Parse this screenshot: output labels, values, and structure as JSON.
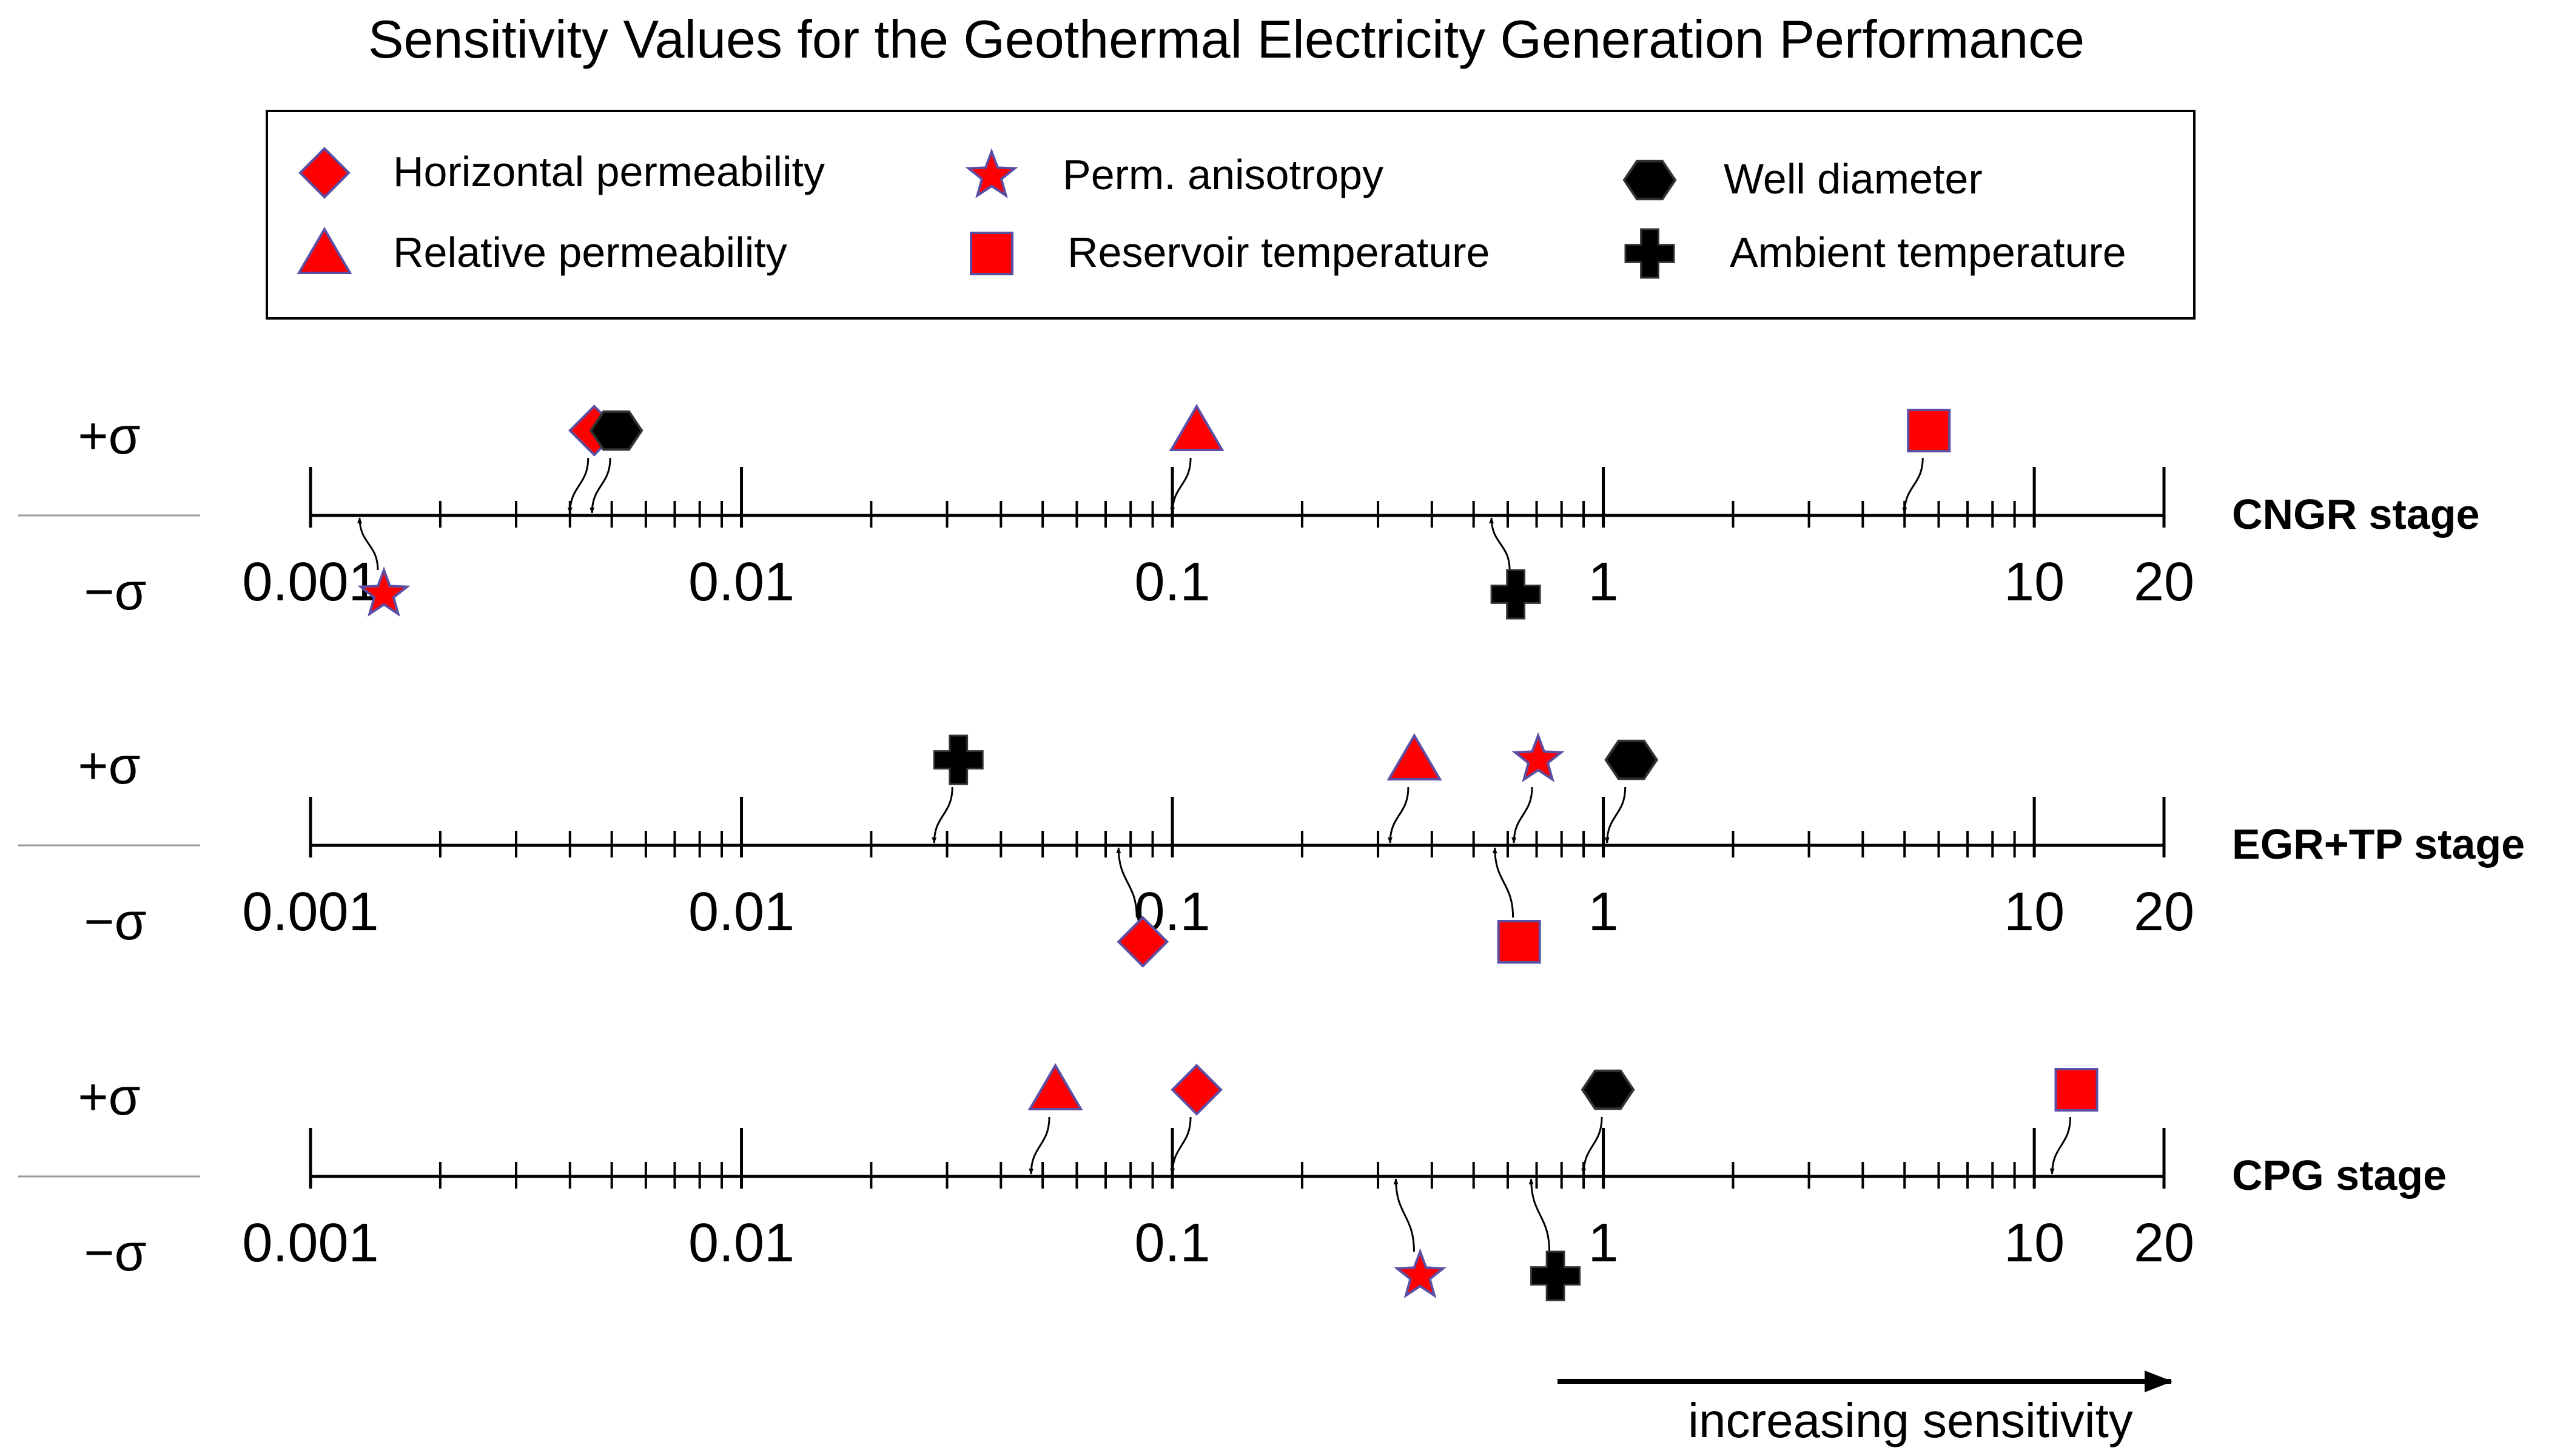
{
  "chart_data": {
    "type": "scatter",
    "title": "Sensitivity Values for the Geothermal Electricity Generation Performance",
    "scale": "log",
    "xlim": [
      0.001,
      20
    ],
    "tick_labels": [
      "0.001",
      "0.01",
      "0.1",
      "1",
      "10",
      "20"
    ],
    "tick_values": [
      0.001,
      0.01,
      0.1,
      1,
      10,
      20
    ],
    "plus_sigma_label": "+σ",
    "minus_sigma_label": "−σ",
    "arrow_label": "increasing sensitivity",
    "legend": [
      {
        "key": "hp",
        "label": "Horizontal permeability",
        "marker": "diamond",
        "color": "#ff0000"
      },
      {
        "key": "rp",
        "label": "Relative permeability",
        "marker": "triangle",
        "color": "#ff0000"
      },
      {
        "key": "pa",
        "label": "Perm. anisotropy",
        "marker": "star",
        "color": "#ff0000"
      },
      {
        "key": "rt",
        "label": "Reservoir temperature",
        "marker": "square",
        "color": "#ff0000"
      },
      {
        "key": "wd",
        "label": "Well diameter",
        "marker": "hexagon",
        "color": "#000000"
      },
      {
        "key": "at",
        "label": "Ambient temperature",
        "marker": "cross",
        "color": "#000000"
      }
    ],
    "stages": [
      {
        "name": "CNGR stage",
        "points": [
          {
            "key": "hp",
            "value": 0.004,
            "side": "+σ"
          },
          {
            "key": "wd",
            "value": 0.0045,
            "side": "+σ"
          },
          {
            "key": "rp",
            "value": 0.1,
            "side": "+σ"
          },
          {
            "key": "rt",
            "value": 5,
            "side": "+σ"
          },
          {
            "key": "pa",
            "value": 0.0013,
            "side": "−σ"
          },
          {
            "key": "at",
            "value": 0.55,
            "side": "−σ"
          }
        ]
      },
      {
        "name": "EGR+TP stage",
        "points": [
          {
            "key": "at",
            "value": 0.028,
            "side": "+σ"
          },
          {
            "key": "rp",
            "value": 0.32,
            "side": "+σ"
          },
          {
            "key": "pa",
            "value": 0.62,
            "side": "+σ"
          },
          {
            "key": "wd",
            "value": 1.02,
            "side": "+σ"
          },
          {
            "key": "hp",
            "value": 0.075,
            "side": "−σ"
          },
          {
            "key": "rt",
            "value": 0.56,
            "side": "−σ"
          }
        ]
      },
      {
        "name": "CPG stage",
        "points": [
          {
            "key": "rp",
            "value": 0.047,
            "side": "+σ"
          },
          {
            "key": "hp",
            "value": 0.1,
            "side": "+σ"
          },
          {
            "key": "wd",
            "value": 0.9,
            "side": "+σ"
          },
          {
            "key": "rt",
            "value": 11,
            "side": "+σ"
          },
          {
            "key": "pa",
            "value": 0.33,
            "side": "−σ"
          },
          {
            "key": "at",
            "value": 0.68,
            "side": "−σ"
          }
        ]
      }
    ]
  }
}
